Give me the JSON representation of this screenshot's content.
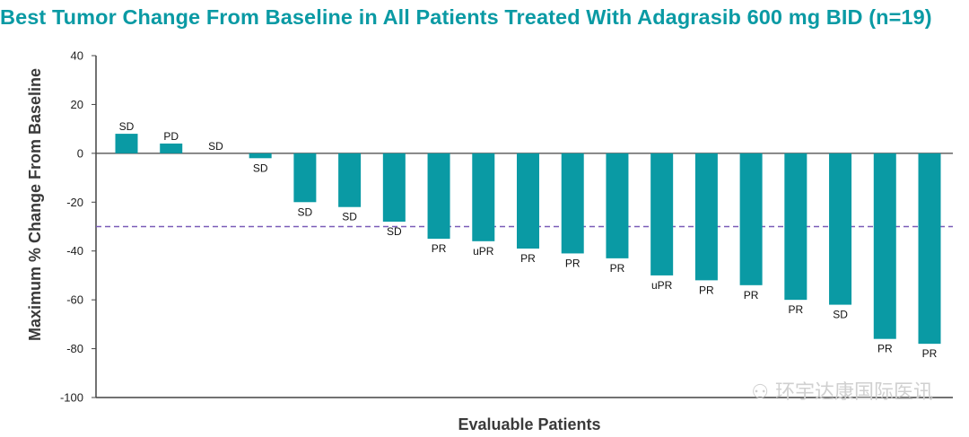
{
  "chart_data": {
    "type": "bar",
    "title": "Best Tumor Change From Baseline in All Patients Treated With Adagrasib 600 mg BID (n=19)",
    "xlabel": "Evaluable Patients",
    "ylabel": "Maximum % Change From Baseline",
    "ylim": [
      -100,
      40
    ],
    "yticks": [
      40,
      20,
      0,
      -20,
      -40,
      -60,
      -80,
      -100
    ],
    "reference_line": {
      "value": -30,
      "style": "dashed"
    },
    "bar_color": "#0a9aa4",
    "reference_color": "#7a5cb8",
    "values": [
      8,
      4,
      0,
      -2,
      -20,
      -22,
      -28,
      -35,
      -36,
      -39,
      -41,
      -43,
      -50,
      -52,
      -54,
      -60,
      -62,
      -76,
      -78
    ],
    "labels": [
      "SD",
      "PD",
      "SD",
      "SD",
      "SD",
      "SD",
      "SD",
      "PR",
      "uPR",
      "PR",
      "PR",
      "PR",
      "uPR",
      "PR",
      "PR",
      "PR",
      "SD",
      "PR",
      "PR"
    ]
  },
  "watermark": "环宇达康国际医讯"
}
